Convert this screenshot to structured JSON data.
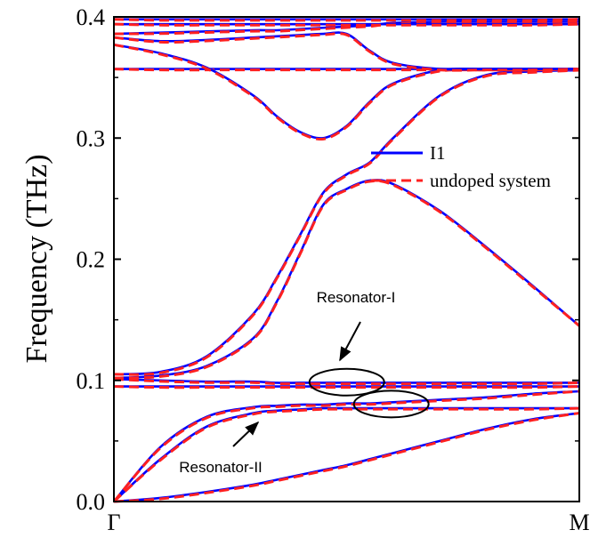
{
  "chart_data": {
    "type": "line",
    "title": "",
    "xlabel": "",
    "ylabel": "Frequency (THz)",
    "xlim": [
      0,
      1
    ],
    "ylim": [
      0,
      0.4
    ],
    "yticks": [
      "0.0",
      "0.1",
      "0.2",
      "0.3",
      "0.4"
    ],
    "xticks": [
      {
        "x": 0,
        "label": "Γ"
      },
      {
        "x": 1,
        "label": "M"
      }
    ],
    "grid": false,
    "legend_position": "right-center",
    "legend": [
      {
        "label": "I1",
        "color": "#0000ff",
        "style": "solid"
      },
      {
        "label": "undoped system",
        "color": "#ff2020",
        "style": "dashed"
      }
    ],
    "annotations": [
      {
        "text": "Resonator-I",
        "target": [
          0.51,
          0.1
        ]
      },
      {
        "text": "Resonator-II",
        "target": [
          0.29,
          0.079
        ]
      }
    ],
    "x": [
      0,
      0.1,
      0.2,
      0.3,
      0.35,
      0.4,
      0.45,
      0.5,
      0.55,
      0.6,
      0.7,
      0.8,
      0.9,
      1.0
    ],
    "series": [
      {
        "values": [
          0.0,
          0.003,
          0.008,
          0.014,
          0.018,
          0.022,
          0.026,
          0.03,
          0.035,
          0.04,
          0.05,
          0.06,
          0.068,
          0.073
        ]
      },
      {
        "values": [
          0.0,
          0.035,
          0.062,
          0.073,
          0.075,
          0.076,
          0.077,
          0.077,
          0.077,
          0.077,
          0.077,
          0.077,
          0.077,
          0.077
        ]
      },
      {
        "values": [
          0.0,
          0.045,
          0.07,
          0.078,
          0.079,
          0.08,
          0.08,
          0.081,
          0.081,
          0.082,
          0.084,
          0.086,
          0.089,
          0.091
        ]
      },
      {
        "values": [
          0.095,
          0.095,
          0.095,
          0.095,
          0.095,
          0.095,
          0.095,
          0.095,
          0.095,
          0.095,
          0.095,
          0.095,
          0.095,
          0.095
        ]
      },
      {
        "values": [
          0.101,
          0.1,
          0.099,
          0.099,
          0.098,
          0.098,
          0.098,
          0.098,
          0.098,
          0.098,
          0.098,
          0.098,
          0.098,
          0.098
        ]
      },
      {
        "values": [
          0.102,
          0.104,
          0.112,
          0.135,
          0.165,
          0.205,
          0.245,
          0.258,
          0.265,
          0.262,
          0.24,
          0.21,
          0.178,
          0.145
        ]
      },
      {
        "values": [
          0.105,
          0.107,
          0.12,
          0.155,
          0.185,
          0.22,
          0.255,
          0.27,
          0.28,
          0.3,
          0.335,
          0.352,
          0.355,
          0.356
        ]
      },
      {
        "values": [
          0.357,
          0.357,
          0.357,
          0.357,
          0.357,
          0.357,
          0.357,
          0.357,
          0.357,
          0.357,
          0.357,
          0.357,
          0.357,
          0.357
        ]
      },
      {
        "values": [
          0.377,
          0.37,
          0.358,
          0.335,
          0.318,
          0.305,
          0.3,
          0.31,
          0.33,
          0.345,
          0.356,
          0.357,
          0.357,
          0.357
        ]
      },
      {
        "values": [
          0.383,
          0.38,
          0.381,
          0.383,
          0.384,
          0.385,
          0.386,
          0.386,
          0.372,
          0.362,
          0.357,
          0.357,
          0.357,
          0.357
        ]
      },
      {
        "values": [
          0.386,
          0.387,
          0.388,
          0.389,
          0.389,
          0.39,
          0.391,
          0.392,
          0.393,
          0.395,
          0.396,
          0.396,
          0.396,
          0.396
        ]
      },
      {
        "values": [
          0.394,
          0.394,
          0.394,
          0.394,
          0.394,
          0.394,
          0.394,
          0.394,
          0.394,
          0.394,
          0.394,
          0.394,
          0.394,
          0.394
        ]
      },
      {
        "values": [
          0.398,
          0.398,
          0.398,
          0.398,
          0.398,
          0.398,
          0.398,
          0.398,
          0.398,
          0.398,
          0.398,
          0.398,
          0.398,
          0.398
        ]
      }
    ],
    "colors": {
      "doped": "#0000ff",
      "undoped": "#ff2020",
      "axis": "#000000"
    }
  }
}
